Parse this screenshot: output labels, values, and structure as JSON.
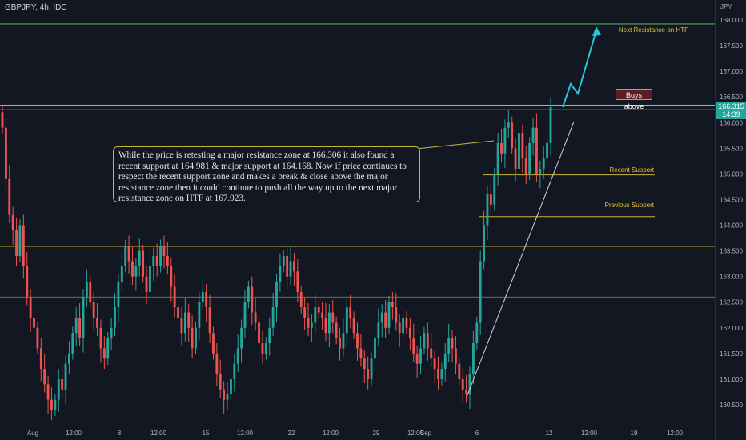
{
  "header": {
    "symbol": "GBPJPY, 4h, IDC"
  },
  "price_axis": {
    "currency": "JPY",
    "labels": [
      "168.000",
      "167.500",
      "167.000",
      "166.500",
      "166.000",
      "165.500",
      "165.000",
      "164.500",
      "164.000",
      "163.500",
      "163.000",
      "162.500",
      "162.000",
      "161.500",
      "161.000",
      "160.500"
    ]
  },
  "time_axis": {
    "labels": [
      "Aug",
      "12:00",
      "8",
      "12:00",
      "15",
      "12:00",
      "22",
      "12:00",
      "29",
      "12:00",
      "Sep",
      "6",
      "12",
      "12:00",
      "19",
      "12:00"
    ]
  },
  "annotation": {
    "text": "While the price is retesting a major resistance zone at 166.306 it also found a recent support at 164.981 & major support at 164.168. Now if price continues to respect the recent support zone and makes a break & close above the major resistance zone then it could continue to push all the way up to the next major resistance zone on HTF at 167.923."
  },
  "labels": {
    "next_resistance": "Next Resistance on HTF",
    "buys_above": "Buys above",
    "recent_support": "Recent Support",
    "previous_support": "Previous Support"
  },
  "current_price": {
    "value": "166.315",
    "countdown": "14:39"
  },
  "colors": {
    "background": "#131722",
    "up": "#26a69a",
    "down": "#ef5350",
    "resistance_line": "#4caf50",
    "support_line": "#c9b43a",
    "projection": "#26c6da",
    "trendline": "#d1d4dc"
  },
  "chart_data": {
    "type": "candlestick",
    "symbol": "GBPJPY",
    "timeframe": "4h",
    "ylim": [
      160.25,
      168.3
    ],
    "levels": [
      {
        "name": "Next Resistance on HTF",
        "price": 167.923
      },
      {
        "name": "Buys above",
        "price": 166.306
      },
      {
        "name": "Recent Support",
        "price": 164.981
      },
      {
        "name": "Previous Support",
        "price": 164.168
      },
      {
        "name": "Level",
        "price": 163.58
      },
      {
        "name": "Level",
        "price": 162.6
      }
    ],
    "last_price": 166.315,
    "closes": [
      165.9,
      164.9,
      164.2,
      163.9,
      163.4,
      164.0,
      163.2,
      162.6,
      162.2,
      162.0,
      161.6,
      161.2,
      160.9,
      160.6,
      160.4,
      160.6,
      161.0,
      160.8,
      161.3,
      161.5,
      161.9,
      162.2,
      161.8,
      162.6,
      162.9,
      162.5,
      162.2,
      162.0,
      161.6,
      161.4,
      161.8,
      162.0,
      162.4,
      162.9,
      163.2,
      163.6,
      163.3,
      163.0,
      163.2,
      163.5,
      163.0,
      162.7,
      163.2,
      163.4,
      163.2,
      163.6,
      163.4,
      163.2,
      162.8,
      162.4,
      162.2,
      161.9,
      162.3,
      162.0,
      161.6,
      162.0,
      162.5,
      162.7,
      162.4,
      161.9,
      161.5,
      161.1,
      160.8,
      160.6,
      160.7,
      161.0,
      161.3,
      161.6,
      162.0,
      162.5,
      162.8,
      162.3,
      162.1,
      161.7,
      161.5,
      161.7,
      162.0,
      162.4,
      162.9,
      163.2,
      163.4,
      163.0,
      163.3,
      163.1,
      162.7,
      162.4,
      162.2,
      162.0,
      162.1,
      162.4,
      162.3,
      162.2,
      161.9,
      162.3,
      162.1,
      161.8,
      161.6,
      161.9,
      162.4,
      162.2,
      161.9,
      161.6,
      161.4,
      161.2,
      161.0,
      161.4,
      161.8,
      162.1,
      162.3,
      162.0,
      162.5,
      162.4,
      162.1,
      161.9,
      162.2,
      162.0,
      161.8,
      161.5,
      161.3,
      161.6,
      161.9,
      161.6,
      161.4,
      161.2,
      161.0,
      161.2,
      161.5,
      161.8,
      161.6,
      161.3,
      161.0,
      160.8,
      160.7,
      161.1,
      161.7,
      162.1,
      163.3,
      164.0,
      164.6,
      164.4,
      165.0,
      165.6,
      165.4,
      165.9,
      166.0,
      165.5,
      165.1,
      165.8,
      165.3,
      165.0,
      165.6,
      165.9,
      165.0,
      165.1,
      165.3,
      165.6,
      166.3
    ]
  }
}
